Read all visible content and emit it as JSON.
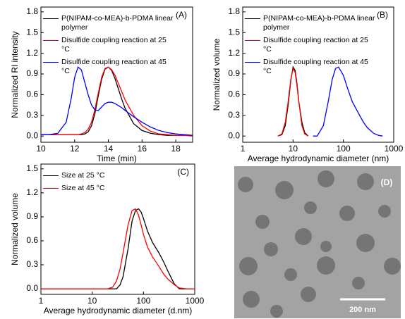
{
  "chart_data": [
    {
      "type": "line",
      "panel_label": "(A)",
      "xlabel": "Time (min)",
      "ylabel": "Normalized RI intensity",
      "xlim": [
        10,
        19
      ],
      "xticks": [
        10,
        12,
        14,
        16,
        18
      ],
      "ylim": [
        -0.09,
        1.87
      ],
      "yticks": [
        {
          "value": 0,
          "label": "0.0"
        },
        0.3,
        0.6,
        0.9,
        1.2,
        1.5,
        1.8
      ],
      "log_x": false,
      "legend": "upper left",
      "x": [
        10,
        10.5,
        11,
        11.5,
        11.8,
        12,
        12.2,
        12.4,
        12.6,
        12.8,
        13,
        13.2,
        13.4,
        13.6,
        13.8,
        14,
        14.2,
        14.4,
        14.6,
        14.8,
        15,
        15.5,
        16,
        16.5,
        17,
        17.5,
        18,
        18.5,
        19
      ],
      "series": [
        {
          "name": "P(NIPAM-co-MEA)-b-PDMA linear polymer",
          "color": "#000000",
          "values": [
            0.02,
            0.02,
            0.02,
            0.02,
            0.02,
            0.02,
            0.02,
            0.02,
            0.03,
            0.06,
            0.15,
            0.32,
            0.58,
            0.82,
            0.97,
            1.0,
            0.95,
            0.83,
            0.68,
            0.53,
            0.4,
            0.18,
            0.08,
            0.04,
            0.02,
            0.01,
            0.01,
            0.01,
            0.01
          ]
        },
        {
          "name": "Disulfide coupling reaction at 25 °C",
          "color": "#ff0000",
          "values": [
            0.02,
            0.02,
            0.02,
            0.02,
            0.02,
            0.02,
            0.02,
            0.03,
            0.05,
            0.1,
            0.2,
            0.38,
            0.62,
            0.85,
            0.98,
            1.0,
            0.96,
            0.88,
            0.76,
            0.64,
            0.52,
            0.3,
            0.15,
            0.07,
            0.03,
            0.02,
            0.01,
            0.01,
            0
          ]
        },
        {
          "name": "Disulfide coupling reaction at 45 °C",
          "color": "#0000ff",
          "values": [
            0.02,
            0.02,
            0.04,
            0.2,
            0.55,
            0.85,
            1.0,
            0.96,
            0.78,
            0.6,
            0.45,
            0.38,
            0.37,
            0.42,
            0.47,
            0.49,
            0.49,
            0.47,
            0.44,
            0.41,
            0.37,
            0.28,
            0.2,
            0.13,
            0.08,
            0.05,
            0.03,
            0.02,
            0.01
          ]
        }
      ]
    },
    {
      "type": "line",
      "panel_label": "(B)",
      "xlabel": "Average hydrodynamic diameter (nm)",
      "ylabel": "Normalized volume",
      "xlim": [
        1,
        1000
      ],
      "xticks": [
        1,
        10,
        100,
        1000
      ],
      "ylim": [
        -0.09,
        1.87
      ],
      "yticks": [
        {
          "value": 0,
          "label": "0.0"
        },
        0.3,
        0.6,
        0.9,
        1.2,
        1.5,
        1.8
      ],
      "log_x": true,
      "legend": "upper left",
      "x": [
        5,
        6,
        7,
        8,
        9,
        10,
        11,
        12,
        13,
        15,
        17,
        20,
        25,
        30,
        40,
        50,
        60,
        70,
        80,
        100,
        120,
        150,
        200,
        250,
        300,
        400,
        500,
        600
      ],
      "series": [
        {
          "name": "P(NIPAM-co-MEA)-b-PDMA linear polymer",
          "color": "#000000",
          "values": [
            0,
            0.02,
            0.15,
            0.45,
            0.8,
            1.0,
            0.95,
            0.75,
            0.5,
            0.2,
            0.05,
            0,
            null,
            null,
            null,
            null,
            null,
            null,
            null,
            null,
            null,
            null,
            null,
            null,
            null,
            null,
            null,
            null
          ]
        },
        {
          "name": "Disulfide coupling reaction at 25 °C",
          "color": "#ff0000",
          "values": [
            0,
            0.03,
            0.2,
            0.5,
            0.82,
            0.98,
            0.92,
            0.72,
            0.5,
            0.15,
            0.03,
            0,
            null,
            null,
            null,
            null,
            null,
            null,
            null,
            null,
            null,
            null,
            null,
            null,
            null,
            null,
            null,
            null
          ]
        },
        {
          "name": "Disulfide coupling reaction at 45 °C",
          "color": "#0000ff",
          "values": [
            null,
            null,
            null,
            null,
            null,
            null,
            null,
            null,
            null,
            null,
            null,
            null,
            0,
            0,
            0.15,
            0.5,
            0.82,
            0.98,
            1.0,
            0.88,
            0.7,
            0.5,
            0.33,
            0.2,
            0.12,
            0.04,
            0.01,
            0
          ]
        }
      ]
    },
    {
      "type": "line",
      "panel_label": "(C)",
      "xlabel": "Average hydrodynamic diameter (d.nm)",
      "ylabel": "Normalized volume",
      "xlim": [
        1,
        1000
      ],
      "xticks": [
        1,
        10,
        100,
        1000
      ],
      "ylim": [
        -0.07,
        1.56
      ],
      "yticks": [
        {
          "value": 0,
          "label": "0.0"
        },
        0.3,
        0.6,
        0.9,
        1.2,
        1.5
      ],
      "log_x": true,
      "legend": "upper left",
      "x": [
        1,
        10,
        20,
        25,
        30,
        35,
        40,
        50,
        60,
        70,
        80,
        90,
        100,
        120,
        150,
        200,
        250,
        300,
        400,
        500,
        700,
        1000
      ],
      "series": [
        {
          "name": "Size at 25 °C",
          "color": "#000000",
          "values": [
            0,
            0,
            0,
            0,
            0,
            0.05,
            0.15,
            0.5,
            0.85,
            0.98,
            1.0,
            0.96,
            0.88,
            0.72,
            0.58,
            0.45,
            0.33,
            0.22,
            0.06,
            0,
            0,
            0
          ]
        },
        {
          "name": "Size at 45 °C",
          "color": "#ff0000",
          "values": [
            0,
            0,
            0,
            0.02,
            0.1,
            0.25,
            0.45,
            0.8,
            0.98,
            1.0,
            0.92,
            0.8,
            0.68,
            0.52,
            0.4,
            0.28,
            0.18,
            0.12,
            0.05,
            0.01,
            0,
            0
          ]
        }
      ]
    }
  ],
  "image": {
    "panel_label": "(D)",
    "scale_bar": "200 nm"
  }
}
